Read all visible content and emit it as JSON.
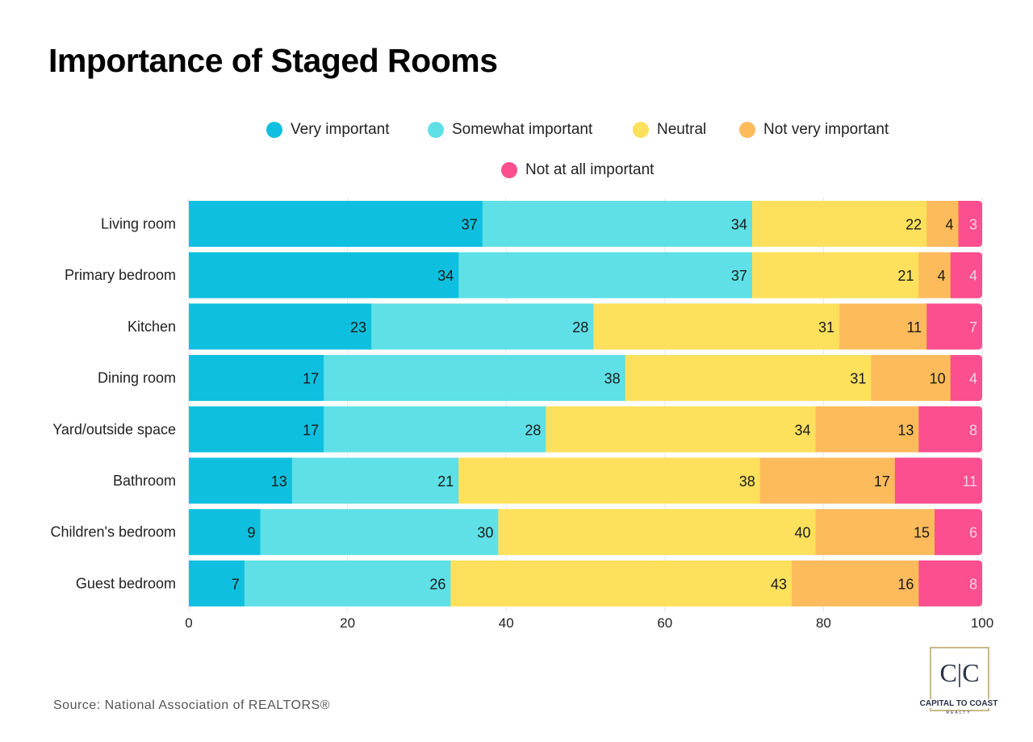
{
  "chart_data": {
    "type": "bar",
    "orientation": "horizontal",
    "stacked": true,
    "title": "Importance of Staged Rooms",
    "categories": [
      "Living room",
      "Primary bedroom",
      "Kitchen",
      "Dining room",
      "Yard/outside space",
      "Bathroom",
      "Children's bedroom",
      "Guest bedroom"
    ],
    "series": [
      {
        "name": "Very important",
        "color": "#0fbfdf",
        "label_color": "#1a1a1a",
        "values": [
          37,
          34,
          23,
          17,
          17,
          13,
          9,
          7
        ]
      },
      {
        "name": "Somewhat important",
        "color": "#5ee0e6",
        "label_color": "#1a1a1a",
        "values": [
          34,
          37,
          28,
          38,
          28,
          21,
          30,
          26
        ]
      },
      {
        "name": "Neutral",
        "color": "#fde05c",
        "label_color": "#1a1a1a",
        "values": [
          22,
          21,
          31,
          31,
          34,
          38,
          40,
          43
        ]
      },
      {
        "name": "Not very important",
        "color": "#fdbb5c",
        "label_color": "#1a1a1a",
        "values": [
          4,
          4,
          11,
          10,
          13,
          17,
          15,
          16
        ]
      },
      {
        "name": "Not at all important",
        "color": "#fb4f8f",
        "label_color": "#fbd3e4",
        "values": [
          3,
          4,
          7,
          4,
          8,
          11,
          6,
          8
        ]
      }
    ],
    "xlim": [
      0,
      100
    ],
    "xticks": [
      0,
      20,
      40,
      60,
      80,
      100
    ],
    "grid": true,
    "legend_position": "top"
  },
  "source": "Source: National Association of REALTORS®",
  "logo": {
    "mark": "C|C",
    "name": "CAPITAL TO COAST",
    "sub": "REALTY"
  }
}
